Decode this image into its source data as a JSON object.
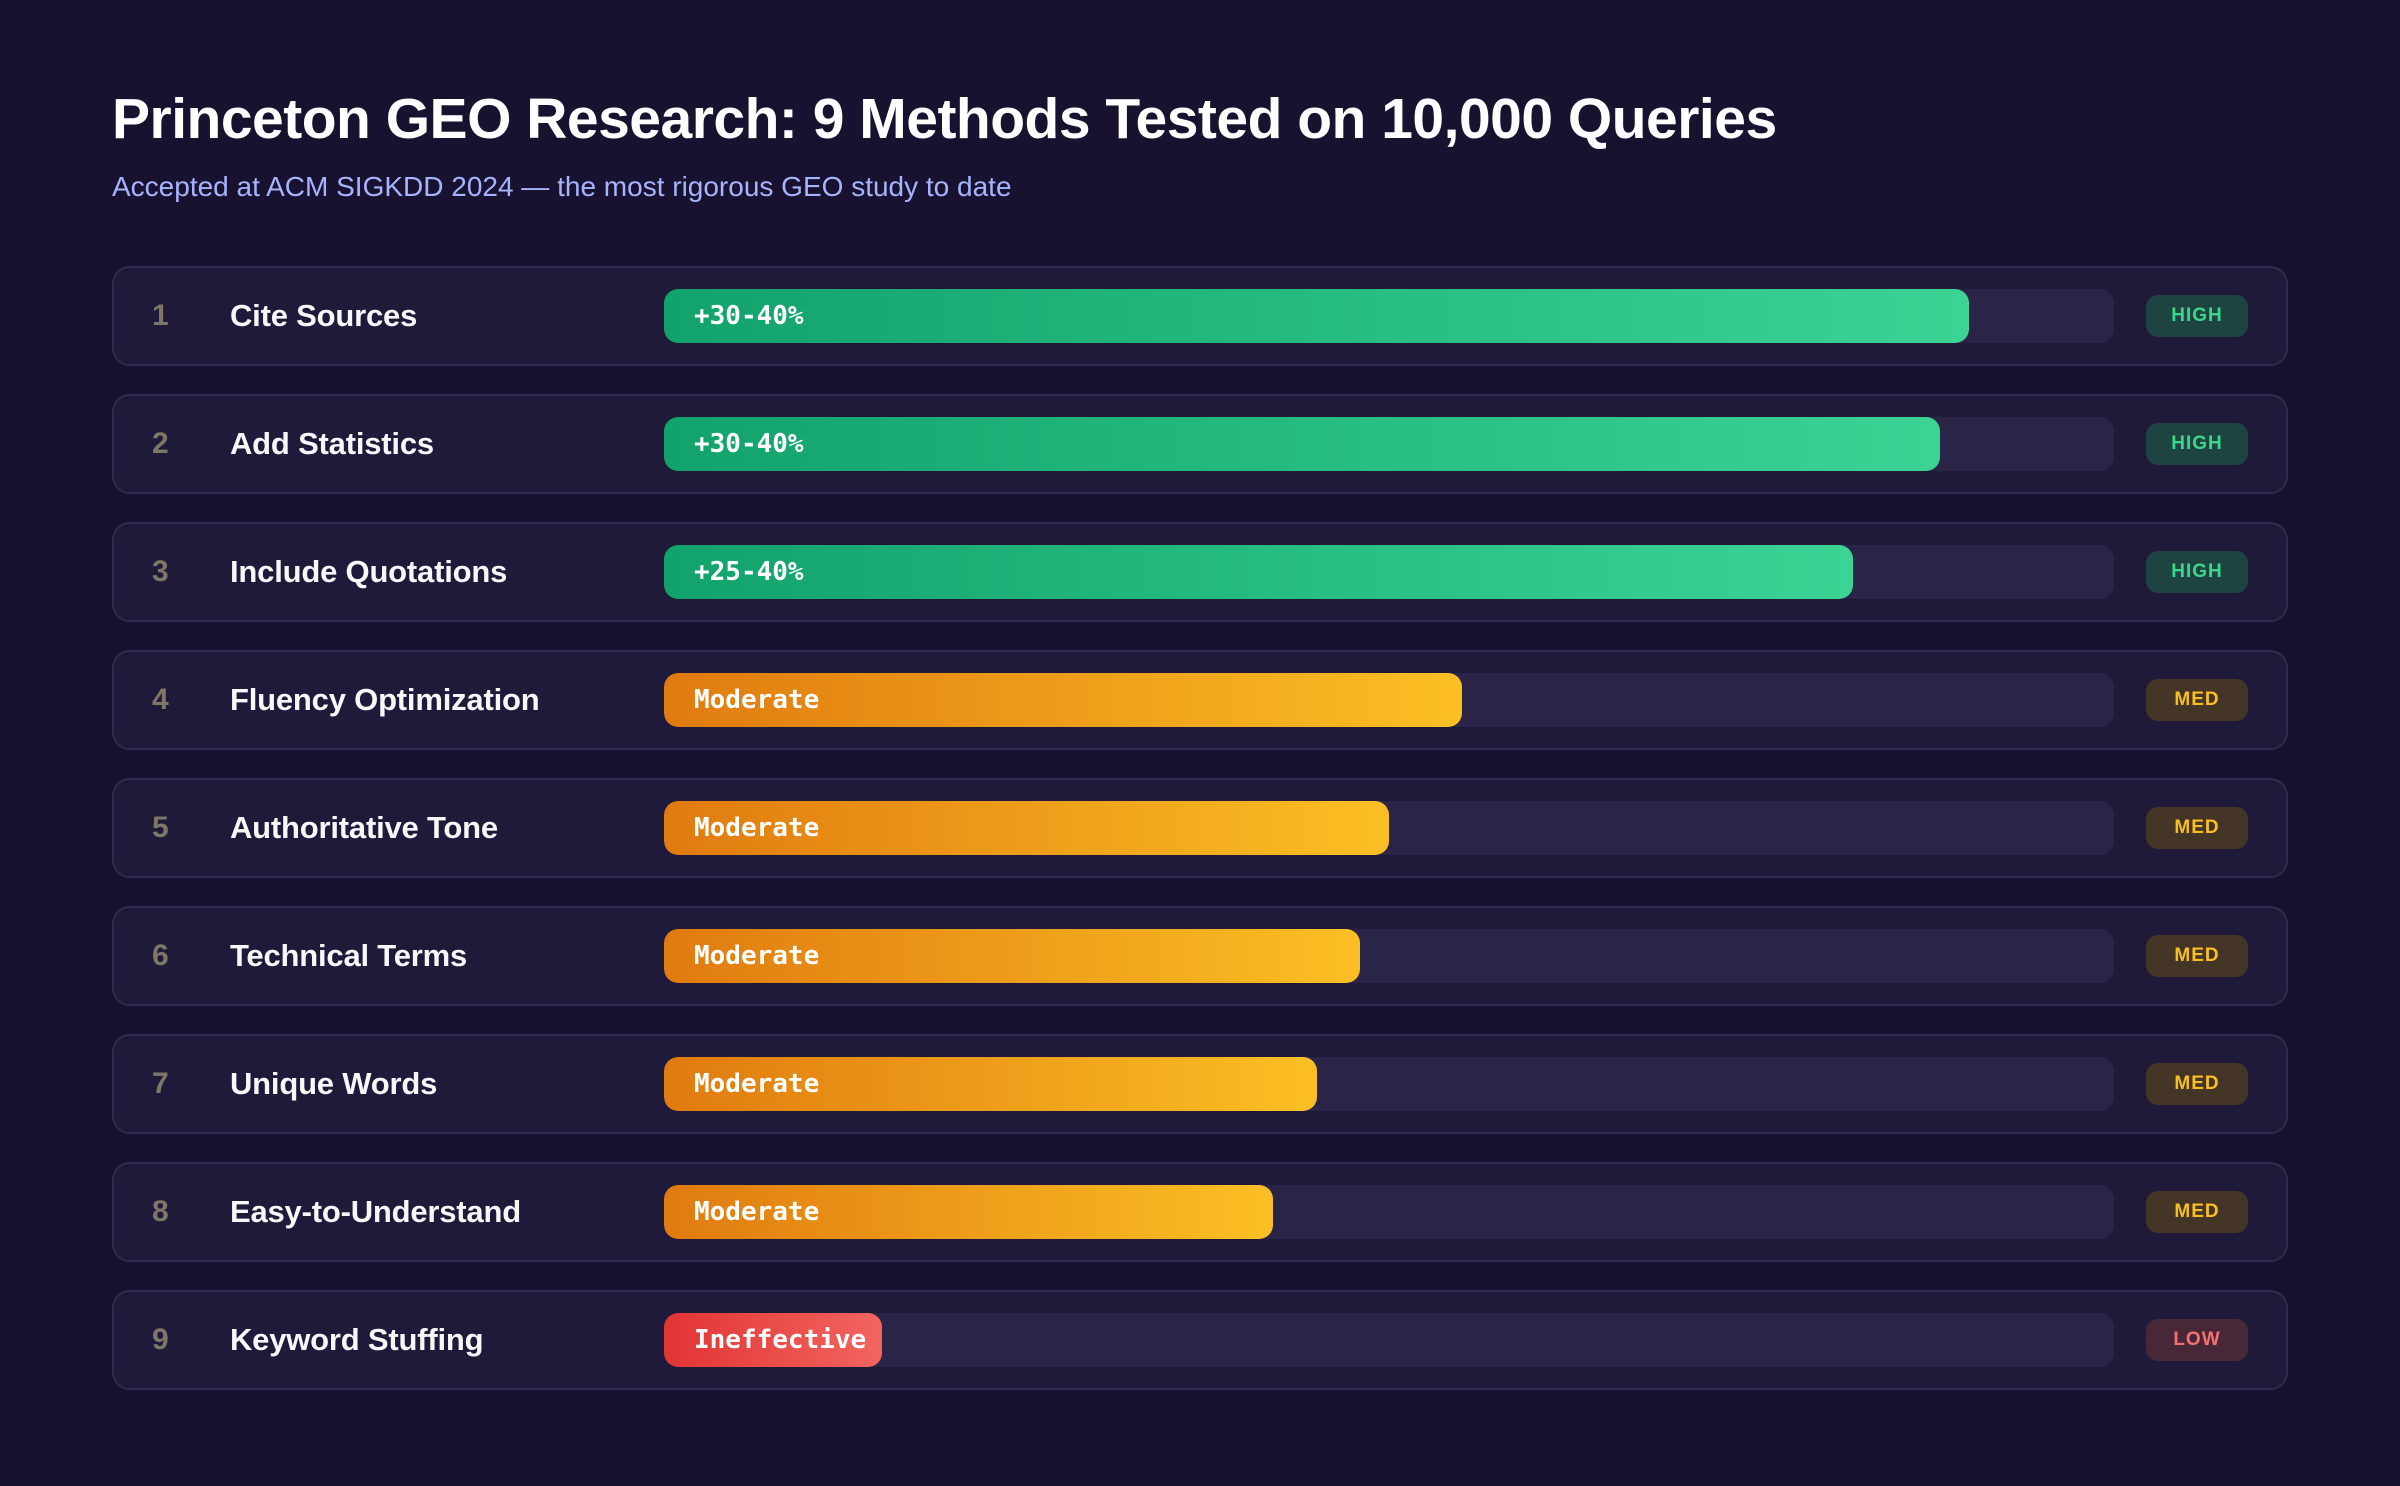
{
  "header": {
    "title": "Princeton GEO Research: 9 Methods Tested on 10,000 Queries",
    "subtitle": "Accepted at ACM SIGKDD 2024 — the most rigorous GEO study to date"
  },
  "rows": [
    {
      "rank": "1",
      "method": "Cite Sources",
      "bar_label": "+30-40%",
      "bar_pct": 90,
      "palette": "green",
      "tier": "HIGH"
    },
    {
      "rank": "2",
      "method": "Add Statistics",
      "bar_label": "+30-40%",
      "bar_pct": 88,
      "palette": "green",
      "tier": "HIGH"
    },
    {
      "rank": "3",
      "method": "Include Quotations",
      "bar_label": "+25-40%",
      "bar_pct": 82,
      "palette": "green",
      "tier": "HIGH"
    },
    {
      "rank": "4",
      "method": "Fluency Optimization",
      "bar_label": "Moderate",
      "bar_pct": 55,
      "palette": "orange",
      "tier": "MED"
    },
    {
      "rank": "5",
      "method": "Authoritative Tone",
      "bar_label": "Moderate",
      "bar_pct": 50,
      "palette": "orange",
      "tier": "MED"
    },
    {
      "rank": "6",
      "method": "Technical Terms",
      "bar_label": "Moderate",
      "bar_pct": 48,
      "palette": "orange",
      "tier": "MED"
    },
    {
      "rank": "7",
      "method": "Unique Words",
      "bar_label": "Moderate",
      "bar_pct": 45,
      "palette": "orange",
      "tier": "MED"
    },
    {
      "rank": "8",
      "method": "Easy-to-Understand",
      "bar_label": "Moderate",
      "bar_pct": 42,
      "palette": "orange",
      "tier": "MED"
    },
    {
      "rank": "9",
      "method": "Keyword Stuffing",
      "bar_label": "Ineffective",
      "bar_pct": 15,
      "palette": "red",
      "tier": "LOW"
    }
  ],
  "chart_data": {
    "type": "bar",
    "orientation": "horizontal",
    "title": "Princeton GEO Research: 9 Methods Tested on 10,000 Queries",
    "subtitle": "Accepted at ACM SIGKDD 2024 — the most rigorous GEO study to date",
    "categories": [
      "Cite Sources",
      "Add Statistics",
      "Include Quotations",
      "Fluency Optimization",
      "Authoritative Tone",
      "Technical Terms",
      "Unique Words",
      "Easy-to-Understand",
      "Keyword Stuffing"
    ],
    "values_pct_of_track": [
      90,
      88,
      82,
      55,
      50,
      48,
      45,
      42,
      15
    ],
    "bar_value_labels": [
      "+30-40%",
      "+30-40%",
      "+25-40%",
      "Moderate",
      "Moderate",
      "Moderate",
      "Moderate",
      "Moderate",
      "Ineffective"
    ],
    "impact_tiers": [
      "HIGH",
      "HIGH",
      "HIGH",
      "MED",
      "MED",
      "MED",
      "MED",
      "MED",
      "LOW"
    ],
    "xlim": [
      0,
      100
    ],
    "grid": false,
    "legend": false
  },
  "colors": {
    "page_bg": "#181230",
    "card_bg": "#1F1A39",
    "card_border": "#2F2A50",
    "track": "#2A2447",
    "title": "#FFFFFF",
    "subtitle": "#A5B4FC",
    "rank": "#7E7767",
    "label": "#F7F7FA",
    "green_from": "#12A26C",
    "green_to": "#3BD495",
    "orange_from": "#E07B10",
    "orange_to": "#FBBF24",
    "red_from": "#E23434",
    "red_to": "#F2655F",
    "high_text": "#3DD68C",
    "high_bg": "#1D4440",
    "med_text": "#FBBF24",
    "med_bg": "#453526",
    "low_text": "#F87171",
    "low_bg": "#482838"
  }
}
